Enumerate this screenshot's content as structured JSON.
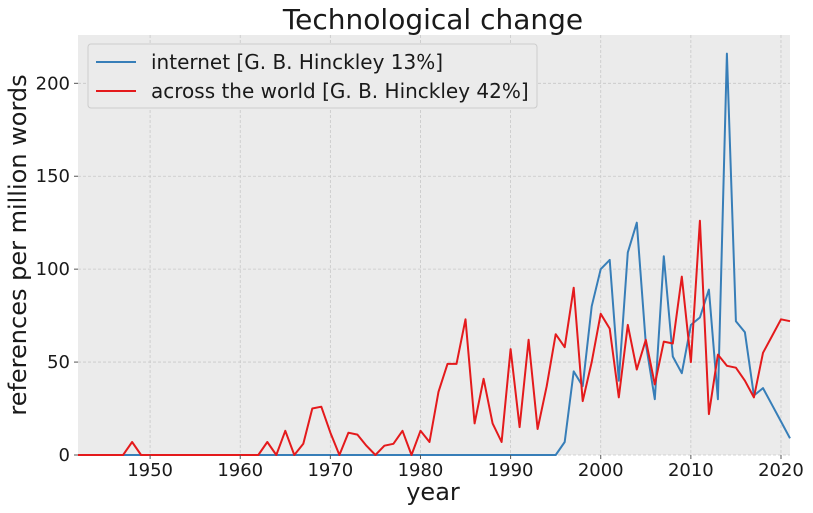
{
  "chart_data": {
    "type": "line",
    "title": "Technological change",
    "xlabel": "year",
    "ylabel": "references per million words",
    "xlim": [
      1942,
      2021
    ],
    "ylim": [
      0,
      226
    ],
    "xticks": [
      1950,
      1960,
      1970,
      1980,
      1990,
      2000,
      2010,
      2020
    ],
    "yticks": [
      0,
      50,
      100,
      150,
      200
    ],
    "grid": true,
    "legend_position": "top-left",
    "series": [
      {
        "name": "internet [G. B. Hinckley 13%]",
        "color": "#377eb8",
        "points": [
          [
            1942,
            0
          ],
          [
            1960,
            0
          ],
          [
            1970,
            0
          ],
          [
            1980,
            0
          ],
          [
            1990,
            0
          ],
          [
            1995,
            0
          ],
          [
            1996,
            7
          ],
          [
            1997,
            45
          ],
          [
            1998,
            37
          ],
          [
            1999,
            80
          ],
          [
            2000,
            100
          ],
          [
            2001,
            105
          ],
          [
            2002,
            40
          ],
          [
            2003,
            109
          ],
          [
            2004,
            125
          ],
          [
            2005,
            60
          ],
          [
            2006,
            30
          ],
          [
            2007,
            107
          ],
          [
            2008,
            53
          ],
          [
            2009,
            44
          ],
          [
            2010,
            70
          ],
          [
            2011,
            74
          ],
          [
            2012,
            89
          ],
          [
            2013,
            30
          ],
          [
            2014,
            216
          ],
          [
            2015,
            72
          ],
          [
            2016,
            66
          ],
          [
            2017,
            32
          ],
          [
            2018,
            36
          ],
          [
            2019,
            27
          ],
          [
            2020,
            18
          ],
          [
            2021,
            9
          ]
        ]
      },
      {
        "name": "across the world [G. B. Hinckley 42%]",
        "color": "#e41a1c",
        "points": [
          [
            1942,
            0
          ],
          [
            1947,
            0
          ],
          [
            1948,
            7
          ],
          [
            1949,
            0
          ],
          [
            1962,
            0
          ],
          [
            1963,
            7
          ],
          [
            1964,
            0
          ],
          [
            1965,
            13
          ],
          [
            1966,
            0
          ],
          [
            1967,
            6
          ],
          [
            1968,
            25
          ],
          [
            1969,
            26
          ],
          [
            1970,
            12
          ],
          [
            1971,
            0
          ],
          [
            1972,
            12
          ],
          [
            1973,
            11
          ],
          [
            1974,
            5
          ],
          [
            1975,
            0
          ],
          [
            1976,
            5
          ],
          [
            1977,
            6
          ],
          [
            1978,
            13
          ],
          [
            1979,
            0
          ],
          [
            1980,
            13
          ],
          [
            1981,
            7
          ],
          [
            1982,
            34
          ],
          [
            1983,
            49
          ],
          [
            1984,
            49
          ],
          [
            1985,
            73
          ],
          [
            1986,
            17
          ],
          [
            1987,
            41
          ],
          [
            1988,
            17
          ],
          [
            1989,
            7
          ],
          [
            1990,
            57
          ],
          [
            1991,
            15
          ],
          [
            1992,
            62
          ],
          [
            1993,
            14
          ],
          [
            1994,
            37
          ],
          [
            1995,
            65
          ],
          [
            1996,
            58
          ],
          [
            1997,
            90
          ],
          [
            1998,
            29
          ],
          [
            1999,
            50
          ],
          [
            2000,
            76
          ],
          [
            2001,
            68
          ],
          [
            2002,
            31
          ],
          [
            2003,
            70
          ],
          [
            2004,
            46
          ],
          [
            2005,
            62
          ],
          [
            2006,
            38
          ],
          [
            2007,
            61
          ],
          [
            2008,
            60
          ],
          [
            2009,
            96
          ],
          [
            2010,
            50
          ],
          [
            2011,
            126
          ],
          [
            2012,
            22
          ],
          [
            2013,
            54
          ],
          [
            2014,
            48
          ],
          [
            2015,
            47
          ],
          [
            2016,
            40
          ],
          [
            2017,
            31
          ],
          [
            2018,
            55
          ],
          [
            2019,
            64
          ],
          [
            2020,
            73
          ],
          [
            2021,
            72
          ]
        ]
      }
    ]
  }
}
